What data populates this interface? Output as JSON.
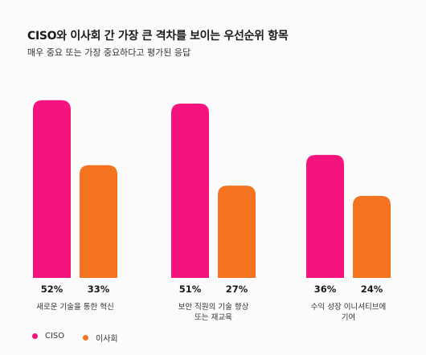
{
  "chart_data": {
    "type": "bar",
    "title": "CISO와 이사회 간 가장 큰 격차를 보이는 우선순위 항목",
    "subtitle": "매우 중요 또는 가장 중요하다고 평가된 응답",
    "categories": [
      [
        "새로운 기술을 통한 혁신"
      ],
      [
        "보안 직원의 기술 향상",
        "또는 재교육"
      ],
      [
        "수익 성장 이니셔티브에",
        "기여"
      ]
    ],
    "series": [
      {
        "name": "CISO",
        "values": [
          52,
          51,
          36
        ],
        "color": "#f5147d"
      },
      {
        "name": "이사회",
        "values": [
          33,
          27,
          24
        ],
        "color": "#f37321"
      }
    ],
    "value_labels": [
      [
        "52%",
        "51%",
        "36%"
      ],
      [
        "33%",
        "27%",
        "24%"
      ]
    ],
    "unit": "%",
    "ylim": [
      0,
      55
    ],
    "grid": false,
    "legend_position": "bottom-left"
  }
}
